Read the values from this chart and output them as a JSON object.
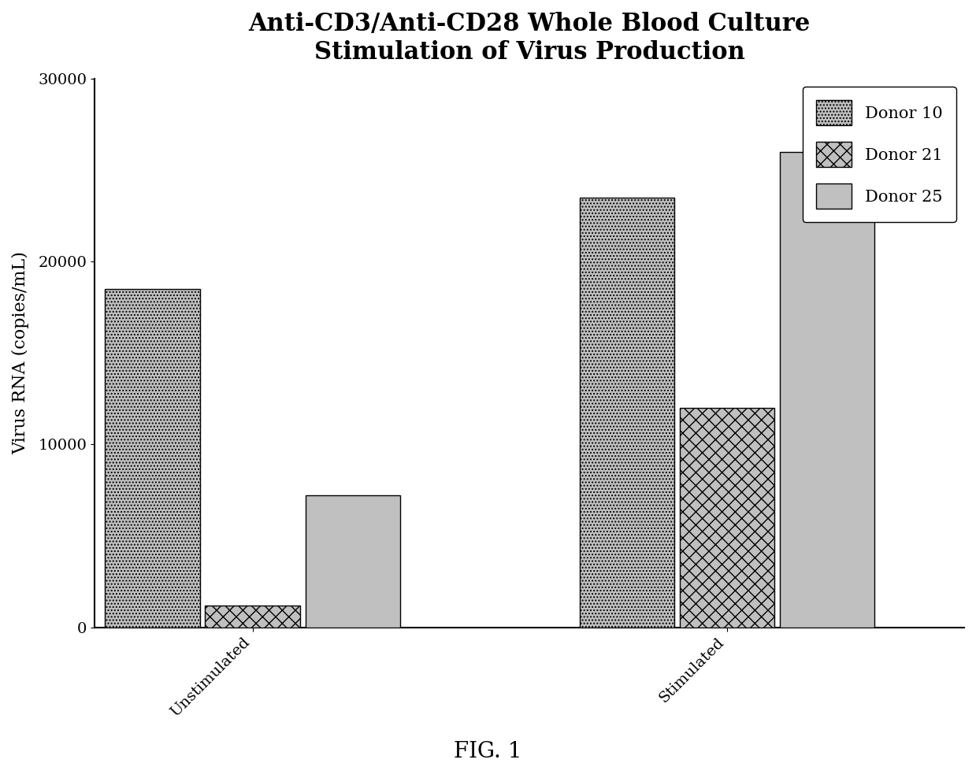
{
  "title": "Anti-CD3/Anti-CD28 Whole Blood Culture\nStimulation of Virus Production",
  "ylabel": "Virus RNA (copies/mL)",
  "fig_caption": "FIG. 1",
  "groups": [
    "Unstimulated",
    "Stimulated"
  ],
  "donors": [
    "Donor 10",
    "Donor 21",
    "Donor 25"
  ],
  "values": {
    "Unstimulated": [
      18500,
      1200,
      7200
    ],
    "Stimulated": [
      23500,
      12000,
      26000
    ]
  },
  "ylim": [
    0,
    30000
  ],
  "yticks": [
    0,
    10000,
    20000,
    30000
  ],
  "bar_width": 0.18,
  "background_color": "#ffffff",
  "title_fontsize": 22,
  "axis_label_fontsize": 16,
  "tick_fontsize": 14,
  "legend_fontsize": 15,
  "caption_fontsize": 20,
  "hatch_patterns": [
    "....",
    "xx",
    "==="
  ],
  "bar_facecolor": "#c0c0c0",
  "bar_edgecolor": "#000000"
}
